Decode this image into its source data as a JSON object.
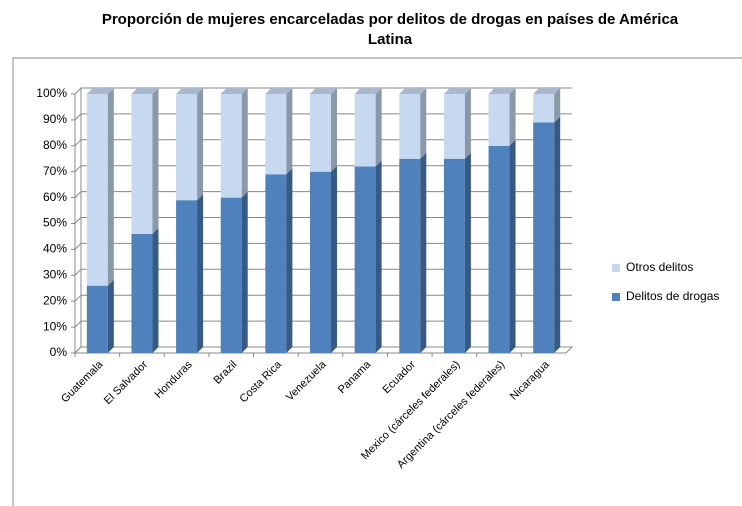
{
  "chart_data": {
    "type": "stacked_bar",
    "title": "Proporción de mujeres encarceladas por delitos de drogas en países de América Latina",
    "categories": [
      "Guatemala",
      "El Salvador",
      "Honduras",
      "Brazil",
      "Costa Rica",
      "Venezuela",
      "Panama",
      "Ecuador",
      "Mexico (cárceles federales)",
      "Argentina (cárceles federales)",
      "Nicaragua"
    ],
    "series": [
      {
        "name": "Delitos de drogas",
        "color": "#4f81bd",
        "values": [
          26,
          46,
          59,
          60,
          69,
          70,
          72,
          75,
          75,
          80,
          89
        ]
      },
      {
        "name": "Otros delitos",
        "color": "#c6d9f1",
        "values": [
          74,
          54,
          41,
          40,
          31,
          30,
          28,
          25,
          25,
          20,
          11
        ]
      }
    ],
    "ylim": [
      0,
      100
    ],
    "yticks": [
      {
        "value": 0,
        "label": "0%"
      },
      {
        "value": 10,
        "label": "10%"
      },
      {
        "value": 20,
        "label": "20%"
      },
      {
        "value": 30,
        "label": "30%"
      },
      {
        "value": 40,
        "label": "40%"
      },
      {
        "value": 50,
        "label": "50%"
      },
      {
        "value": 60,
        "label": "60%"
      },
      {
        "value": 70,
        "label": "70%"
      },
      {
        "value": 80,
        "label": "80%"
      },
      {
        "value": 90,
        "label": "90%"
      },
      {
        "value": 100,
        "label": "100%"
      }
    ],
    "grid": true,
    "legend": "right"
  }
}
